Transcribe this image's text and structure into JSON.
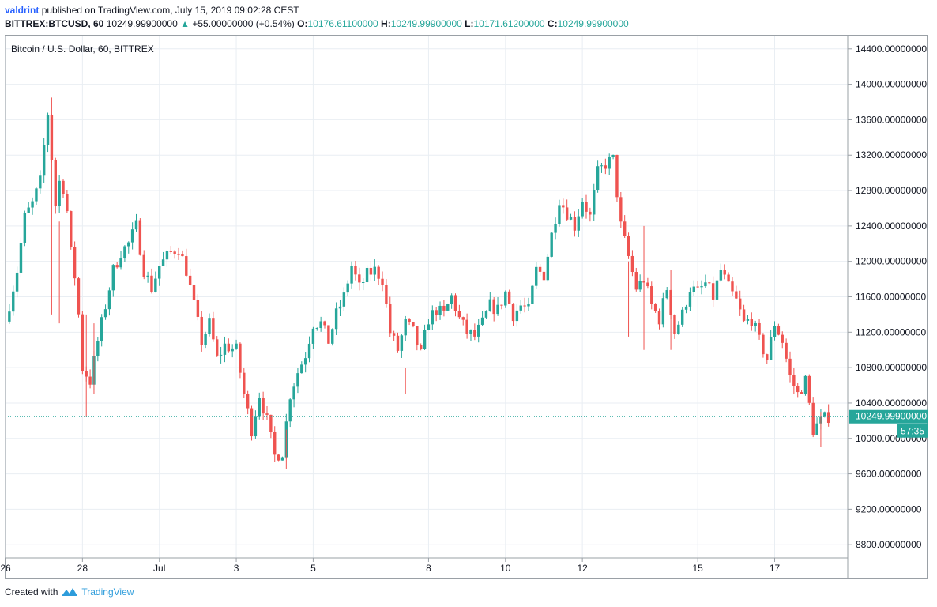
{
  "header": {
    "user": "valdrint",
    "published_text": "published on TradingView.com, July 15, 2019 09:02:28 CEST",
    "symbol": "BITTREX:BTCUSD, 60",
    "last_price": "10249.99900000",
    "change_arrow": "▲",
    "change": "+55.00000000 (+0.54%)",
    "open_label": "O:",
    "open": "10176.61100000",
    "high_label": "H:",
    "high": "10249.99900000",
    "low_label": "L:",
    "low": "10171.61200000",
    "close_label": "C:",
    "close": "10249.99900000"
  },
  "footer": {
    "created_with": "Created with",
    "brand": "TradingView",
    "logo_icon": "tradingview-logo-icon"
  },
  "colors": {
    "up": "#26a69a",
    "down": "#ef5350",
    "grid": "#e9eef3",
    "price_line": "#26a69a",
    "axis_text": "#131722"
  },
  "chart_data": {
    "type": "candlestick",
    "title": "Bitcoin / U.S. Dollar, 60, BITTREX",
    "x_tick_labels": [
      "26",
      "28",
      "Jul",
      "3",
      "5",
      "8",
      "10",
      "12",
      "15",
      "17"
    ],
    "y_tick_labels": [
      "14400.00000000",
      "14000.00000000",
      "13600.00000000",
      "13200.00000000",
      "12800.00000000",
      "12400.00000000",
      "12000.00000000",
      "11600.00000000",
      "11200.00000000",
      "10800.00000000",
      "10400.00000000",
      "10000.00000000",
      "9600.00000000",
      "9200.00000000",
      "8800.00000000"
    ],
    "y_ticks": [
      14400,
      14000,
      13600,
      13200,
      12800,
      12400,
      12000,
      11600,
      11200,
      10800,
      10400,
      10000,
      9600,
      9200,
      8800
    ],
    "ylim": [
      8650,
      14550
    ],
    "x_domain_days": [
      26,
      47.9
    ],
    "x_ticks_days": [
      26,
      28,
      30,
      32,
      34,
      37,
      39,
      41,
      44,
      46
    ],
    "current_price": 10249.999,
    "current_price_label": "10249.99900000",
    "countdown_label": "57:35",
    "grid": true,
    "path": [
      [
        26.0,
        11320
      ],
      [
        26.3,
        11900
      ],
      [
        26.5,
        12500
      ],
      [
        26.7,
        12650
      ],
      [
        26.9,
        12900
      ],
      [
        27.05,
        13500
      ],
      [
        27.15,
        13840
      ],
      [
        27.25,
        12500
      ],
      [
        27.4,
        12900
      ],
      [
        27.55,
        12800
      ],
      [
        27.7,
        12100
      ],
      [
        27.85,
        11700
      ],
      [
        28.0,
        10800
      ],
      [
        28.2,
        10650
      ],
      [
        28.4,
        11100
      ],
      [
        28.6,
        11500
      ],
      [
        28.8,
        11900
      ],
      [
        29.0,
        12100
      ],
      [
        29.2,
        12200
      ],
      [
        29.4,
        12400
      ],
      [
        29.6,
        11900
      ],
      [
        29.8,
        11700
      ],
      [
        30.0,
        11950
      ],
      [
        30.3,
        12100
      ],
      [
        30.5,
        12150
      ],
      [
        30.7,
        11900
      ],
      [
        30.9,
        11500
      ],
      [
        31.1,
        11100
      ],
      [
        31.3,
        11300
      ],
      [
        31.5,
        10900
      ],
      [
        31.7,
        11050
      ],
      [
        32.0,
        11000
      ],
      [
        32.2,
        10500
      ],
      [
        32.4,
        10100
      ],
      [
        32.6,
        10500
      ],
      [
        32.8,
        10200
      ],
      [
        33.0,
        9800
      ],
      [
        33.2,
        9850
      ],
      [
        33.4,
        10500
      ],
      [
        33.6,
        10750
      ],
      [
        33.8,
        10950
      ],
      [
        34.0,
        11300
      ],
      [
        34.2,
        11300
      ],
      [
        34.4,
        11100
      ],
      [
        34.6,
        11400
      ],
      [
        34.8,
        11600
      ],
      [
        35.0,
        11950
      ],
      [
        35.2,
        11700
      ],
      [
        35.4,
        11850
      ],
      [
        35.6,
        11900
      ],
      [
        35.8,
        11800
      ],
      [
        36.0,
        11200
      ],
      [
        36.2,
        11000
      ],
      [
        36.4,
        11300
      ],
      [
        36.6,
        11200
      ],
      [
        36.8,
        10950
      ],
      [
        37.0,
        11350
      ],
      [
        37.2,
        11450
      ],
      [
        37.4,
        11400
      ],
      [
        37.6,
        11600
      ],
      [
        37.8,
        11350
      ],
      [
        38.0,
        11200
      ],
      [
        38.2,
        11150
      ],
      [
        38.4,
        11300
      ],
      [
        38.6,
        11500
      ],
      [
        38.8,
        11450
      ],
      [
        39.0,
        11650
      ],
      [
        39.2,
        11400
      ],
      [
        39.4,
        11500
      ],
      [
        39.6,
        11450
      ],
      [
        39.8,
        11900
      ],
      [
        40.0,
        11850
      ],
      [
        40.2,
        12300
      ],
      [
        40.4,
        12700
      ],
      [
        40.6,
        12550
      ],
      [
        40.8,
        12400
      ],
      [
        41.0,
        12700
      ],
      [
        41.2,
        12500
      ],
      [
        41.4,
        13000
      ],
      [
        41.6,
        13100
      ],
      [
        41.8,
        13150
      ],
      [
        42.0,
        12400
      ],
      [
        42.2,
        12050
      ],
      [
        42.4,
        11700
      ],
      [
        42.6,
        11800
      ],
      [
        42.8,
        11500
      ],
      [
        43.0,
        11350
      ],
      [
        43.2,
        11700
      ],
      [
        43.4,
        11200
      ],
      [
        43.6,
        11400
      ],
      [
        43.8,
        11700
      ],
      [
        44.0,
        11650
      ],
      [
        44.2,
        11750
      ],
      [
        44.4,
        11600
      ],
      [
        44.6,
        11900
      ],
      [
        44.8,
        11700
      ],
      [
        45.0,
        11550
      ],
      [
        45.2,
        11300
      ],
      [
        45.4,
        11350
      ],
      [
        45.6,
        11100
      ],
      [
        45.8,
        10900
      ],
      [
        46.0,
        11300
      ],
      [
        46.2,
        11100
      ],
      [
        46.4,
        10700
      ],
      [
        46.6,
        10500
      ],
      [
        46.8,
        10650
      ],
      [
        47.0,
        10100
      ],
      [
        47.2,
        10200
      ],
      [
        47.4,
        10250
      ]
    ],
    "wicks": [
      [
        27.2,
        13850,
        11400
      ],
      [
        27.4,
        12450,
        11300
      ],
      [
        28.1,
        11400,
        10250
      ],
      [
        28.3,
        11300,
        10500
      ],
      [
        33.3,
        10100,
        9650
      ],
      [
        36.4,
        10800,
        10500
      ],
      [
        42.2,
        12000,
        11150
      ],
      [
        42.6,
        12400,
        11000
      ],
      [
        43.3,
        11900,
        11000
      ],
      [
        47.2,
        10300,
        9900
      ]
    ]
  }
}
